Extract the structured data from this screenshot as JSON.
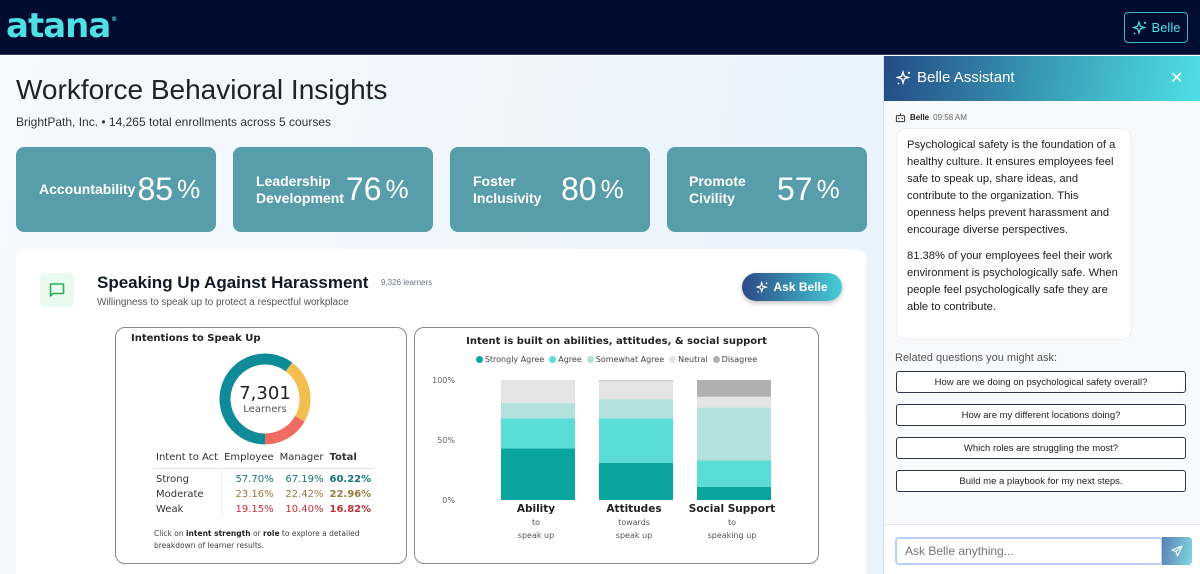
{
  "app": {
    "logo": "atana",
    "logo_mark": "®",
    "belle_button": "Belle"
  },
  "header": {
    "title": "Workforce Behavioral Insights",
    "subtitle": "BrightPath, Inc. • 14,265 total enrollments across 5 courses"
  },
  "kpis": [
    {
      "label_line1": "Accountability",
      "label_line2": "",
      "value": "85",
      "unit": "%"
    },
    {
      "label_line1": "Leadership",
      "label_line2": "Development",
      "value": "76",
      "unit": "%"
    },
    {
      "label_line1": "Foster",
      "label_line2": "Inclusivity",
      "value": "80",
      "unit": "%"
    },
    {
      "label_line1": "Promote",
      "label_line2": "Civility",
      "value": "57",
      "unit": "%"
    }
  ],
  "course_card": {
    "icon": "message-square-icon",
    "title": "Speaking Up Against Harassment",
    "learners": "9,326 learners",
    "subtitle": "Willingness to speak up to protect a respectful workplace",
    "ask_button": "Ask Belle"
  },
  "intentions": {
    "title": "Intentions to Speak Up",
    "center_value": "7,301",
    "center_label": "Learners",
    "table": {
      "headers": [
        "Intent to Act",
        "Employee",
        "Manager",
        "Total"
      ],
      "rows": [
        {
          "label": "Strong",
          "employee": "57.70%",
          "manager": "67.19%",
          "total": "60.22%"
        },
        {
          "label": "Moderate",
          "employee": "23.16%",
          "manager": "22.42%",
          "total": "22.96%"
        },
        {
          "label": "Weak",
          "employee": "19.15%",
          "manager": "10.40%",
          "total": "16.82%"
        }
      ]
    },
    "note_prefix": "Click on ",
    "note_bold1": "intent strength",
    "note_mid": " or ",
    "note_bold2": "role",
    "note_suffix": " to explore a detailed breakdown of learner results.",
    "colors": {
      "strong": "#0f8a98",
      "moderate": "#f3bd4f",
      "weak": "#ee6c62"
    }
  },
  "chart_data": [
    {
      "type": "pie",
      "title": "Intentions to Speak Up",
      "categories": [
        "Strong",
        "Moderate",
        "Weak"
      ],
      "values": [
        60.22,
        22.96,
        16.82
      ],
      "colors": [
        "#0f8a98",
        "#f3bd4f",
        "#ee6c62"
      ],
      "center_text": "7,301"
    },
    {
      "type": "bar",
      "stacked": true,
      "title": "Intent is built on abilities, attitudes, & social support",
      "categories": [
        "Ability",
        "Attitudes",
        "Social Support"
      ],
      "category_sublabels": [
        [
          "to",
          "speak up"
        ],
        [
          "towards",
          "speak up"
        ],
        [
          "to",
          "speaking up"
        ]
      ],
      "y_ticks": [
        "100%",
        "50%",
        "0%"
      ],
      "ylim": [
        0,
        100
      ],
      "legend_position": "top",
      "series": [
        {
          "name": "Strongly Agree",
          "color": "#0aa59f",
          "values": [
            43,
            31,
            11
          ]
        },
        {
          "name": "Agree",
          "color": "#5addd7",
          "values": [
            25,
            37,
            22
          ]
        },
        {
          "name": "Somewhat Agree",
          "color": "#b2e1de",
          "values": [
            13,
            16,
            44
          ]
        },
        {
          "name": "Neutral",
          "color": "#e4e4e4",
          "values": [
            19,
            15.5,
            9
          ]
        },
        {
          "name": "Disagree",
          "color": "#b0b0b0",
          "values": [
            0,
            0.5,
            14
          ]
        }
      ]
    }
  ],
  "assistant": {
    "title": "Belle Assistant",
    "sender": "Belle",
    "time": "09:58 AM",
    "message_p1": "Psychological safety is the foundation of a healthy culture. It ensures employees feel safe to speak up, share ideas, and contribute to the organization. This openness helps prevent harassment and encourage diverse perspectives.",
    "message_p2": "81.38% of your employees feel their work environment is psychologically safe. When people feel psychologically safe they are able to contribute.",
    "related_label": "Related questions you might ask:",
    "questions": [
      "How are we doing on psychological safety overall?",
      "How are my different locations doing?",
      "Which roles are struggling the most?",
      "Build me a playbook for my next steps."
    ],
    "input_placeholder": "Ask Belle anything..."
  }
}
